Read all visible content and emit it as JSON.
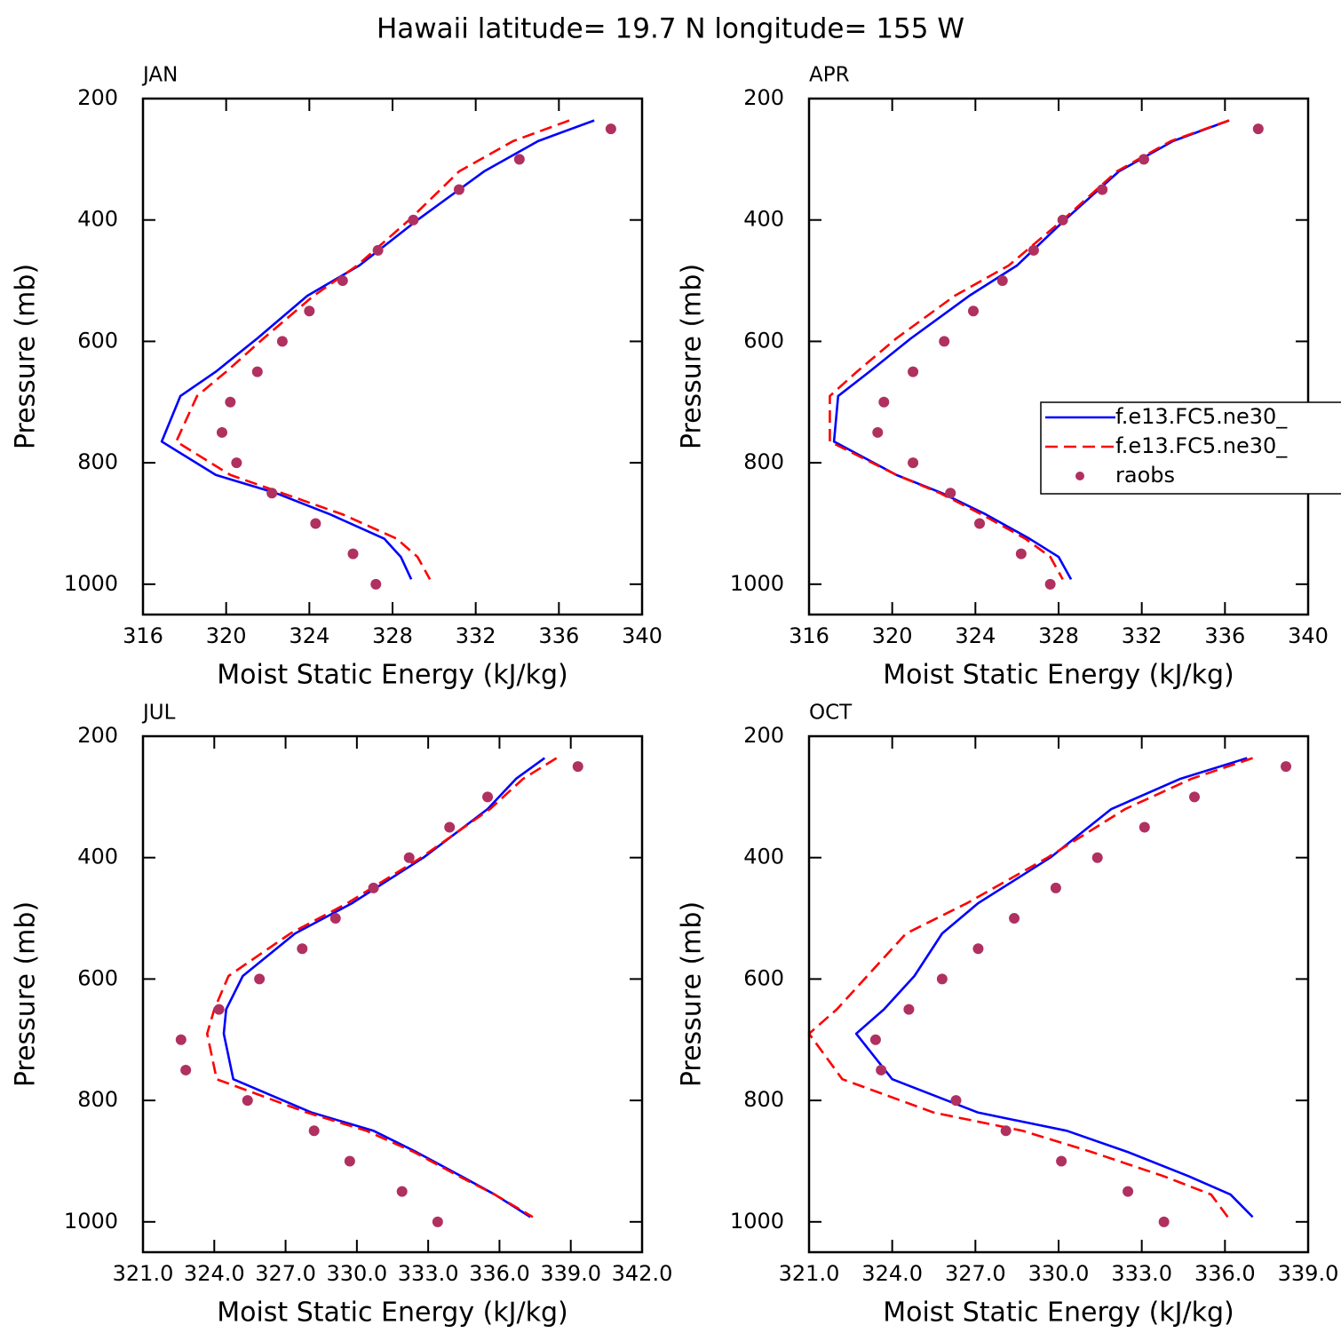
{
  "title": "Hawaii  latitude= 19.7 N longitude= 155 W",
  "chart_data": [
    {
      "type": "line",
      "title": "JAN",
      "x_label": "Moist Static Energy (kJ/kg)",
      "y_label": "Pressure (mb)",
      "xlim": [
        316,
        340
      ],
      "xticks": [
        316,
        320,
        324,
        328,
        332,
        336,
        340
      ],
      "ylim": [
        1050,
        200
      ],
      "yticks": [
        200,
        400,
        600,
        800,
        1000
      ],
      "series": [
        {
          "name": "f.e13.FC5.ne30_",
          "color": "#0000ff",
          "style": "solid",
          "x": [
            337.7,
            335.0,
            332.4,
            329.2,
            326.4,
            323.9,
            321.5,
            319.5,
            317.8,
            316.9,
            319.5,
            322.4,
            325.0,
            327.6,
            328.4,
            328.9
          ],
          "y": [
            236,
            270,
            320,
            400,
            475,
            525,
            595,
            650,
            690,
            765,
            820,
            850,
            885,
            925,
            955,
            992
          ]
        },
        {
          "name": "f.e13.FC5.ne30_",
          "color": "#ff0000",
          "style": "dashed",
          "x": [
            336.5,
            333.8,
            331.2,
            328.8,
            326.3,
            324.2,
            321.8,
            320.0,
            318.6,
            317.6,
            320.2,
            322.7,
            325.6,
            328.2,
            329.2,
            329.8
          ],
          "y": [
            236,
            270,
            320,
            400,
            475,
            525,
            595,
            650,
            690,
            765,
            820,
            850,
            885,
            925,
            955,
            992
          ]
        },
        {
          "name": "raobs",
          "color": "#b03060",
          "style": "markers",
          "x": [
            338.5,
            334.1,
            331.2,
            329.0,
            327.3,
            325.6,
            324.0,
            322.7,
            321.5,
            320.2,
            319.8,
            320.5,
            322.2,
            324.3,
            326.1,
            327.2
          ],
          "y": [
            250,
            300,
            350,
            400,
            450,
            500,
            550,
            600,
            650,
            700,
            750,
            800,
            850,
            900,
            950,
            1000
          ]
        }
      ]
    },
    {
      "type": "line",
      "title": "APR",
      "x_label": "Moist Static Energy (kJ/kg)",
      "y_label": "Pressure (mb)",
      "xlim": [
        316,
        340
      ],
      "xticks": [
        316,
        320,
        324,
        328,
        332,
        336,
        340
      ],
      "ylim": [
        1050,
        200
      ],
      "yticks": [
        200,
        400,
        600,
        800,
        1000
      ],
      "legend": "right",
      "series": [
        {
          "name": "f.e13.FC5.ne30_",
          "color": "#0000ff",
          "style": "solid",
          "x": [
            336.2,
            333.5,
            330.9,
            328.3,
            326.0,
            323.7,
            320.9,
            318.9,
            317.4,
            317.2,
            320.2,
            322.4,
            324.5,
            326.6,
            328.0,
            328.6
          ],
          "y": [
            236,
            270,
            320,
            400,
            475,
            525,
            595,
            650,
            690,
            765,
            820,
            850,
            885,
            925,
            955,
            992
          ]
        },
        {
          "name": "f.e13.FC5.ne30_",
          "color": "#ff0000",
          "style": "dashed",
          "x": [
            336.2,
            333.4,
            330.8,
            328.2,
            325.6,
            323.0,
            320.2,
            318.3,
            317.0,
            317.0,
            320.2,
            322.3,
            324.3,
            326.4,
            327.6,
            328.2
          ],
          "y": [
            236,
            270,
            320,
            400,
            475,
            525,
            595,
            650,
            690,
            765,
            820,
            850,
            885,
            925,
            955,
            992
          ]
        },
        {
          "name": "raobs",
          "color": "#b03060",
          "style": "markers",
          "x": [
            337.6,
            332.1,
            330.1,
            328.2,
            326.8,
            325.3,
            323.9,
            322.5,
            321.0,
            319.6,
            319.3,
            321.0,
            322.8,
            324.2,
            326.2,
            327.6
          ],
          "y": [
            250,
            300,
            350,
            400,
            450,
            500,
            550,
            600,
            650,
            700,
            750,
            800,
            850,
            900,
            950,
            1000
          ]
        }
      ]
    },
    {
      "type": "line",
      "title": "JUL",
      "x_label": "Moist Static Energy (kJ/kg)",
      "y_label": "Pressure (mb)",
      "xlim": [
        321,
        342
      ],
      "xticks": [
        {
          "value": 321,
          "label": "321.0"
        },
        {
          "value": 324,
          "label": "324.0"
        },
        {
          "value": 327,
          "label": "327.0"
        },
        {
          "value": 330,
          "label": "330.0"
        },
        {
          "value": 333,
          "label": "333.0"
        },
        {
          "value": 336,
          "label": "336.0"
        },
        {
          "value": 339,
          "label": "339.0"
        },
        {
          "value": 342,
          "label": "342.0"
        }
      ],
      "ylim": [
        1050,
        200
      ],
      "yticks": [
        200,
        400,
        600,
        800,
        1000
      ],
      "series": [
        {
          "name": "f.e13.FC5.ne30_",
          "color": "#0000ff",
          "style": "solid",
          "x": [
            337.9,
            336.7,
            335.5,
            332.8,
            329.8,
            327.4,
            325.2,
            324.5,
            324.4,
            324.8,
            328.1,
            330.7,
            332.5,
            334.4,
            335.8,
            337.3
          ],
          "y": [
            236,
            270,
            320,
            400,
            475,
            525,
            595,
            650,
            690,
            765,
            820,
            850,
            885,
            925,
            955,
            992
          ]
        },
        {
          "name": "f.e13.FC5.ne30_",
          "color": "#ff0000",
          "style": "dashed",
          "x": [
            338.4,
            337.0,
            335.6,
            332.7,
            329.6,
            327.2,
            324.6,
            324.0,
            323.7,
            324.1,
            327.9,
            330.4,
            332.4,
            334.3,
            335.8,
            337.4
          ],
          "y": [
            236,
            270,
            320,
            400,
            475,
            525,
            595,
            650,
            690,
            765,
            820,
            850,
            885,
            925,
            955,
            992
          ]
        },
        {
          "name": "raobs",
          "color": "#b03060",
          "style": "markers",
          "x": [
            339.3,
            335.5,
            333.9,
            332.2,
            330.7,
            329.1,
            327.7,
            325.9,
            324.2,
            322.6,
            322.8,
            325.4,
            328.2,
            329.7,
            331.9,
            333.4
          ],
          "y": [
            250,
            300,
            350,
            400,
            450,
            500,
            550,
            600,
            650,
            700,
            750,
            800,
            850,
            900,
            950,
            1000
          ]
        }
      ]
    },
    {
      "type": "line",
      "title": "OCT",
      "x_label": "Moist Static Energy (kJ/kg)",
      "y_label": "Pressure (mb)",
      "xlim": [
        321,
        339
      ],
      "xticks": [
        {
          "value": 321,
          "label": "321.0"
        },
        {
          "value": 324,
          "label": "324.0"
        },
        {
          "value": 327,
          "label": "327.0"
        },
        {
          "value": 330,
          "label": "330.0"
        },
        {
          "value": 333,
          "label": "333.0"
        },
        {
          "value": 336,
          "label": "336.0"
        },
        {
          "value": 339,
          "label": "339.0"
        }
      ],
      "ylim": [
        1050,
        200
      ],
      "yticks": [
        200,
        400,
        600,
        800,
        1000
      ],
      "series": [
        {
          "name": "f.e13.FC5.ne30_",
          "color": "#0000ff",
          "style": "solid",
          "x": [
            336.8,
            334.4,
            331.9,
            329.7,
            327.1,
            325.8,
            324.8,
            323.7,
            322.7,
            324.0,
            327.1,
            330.3,
            332.5,
            334.7,
            336.2,
            337.0
          ],
          "y": [
            236,
            270,
            320,
            400,
            475,
            525,
            595,
            650,
            690,
            765,
            820,
            850,
            885,
            925,
            955,
            992
          ]
        },
        {
          "name": "f.e13.FC5.ne30_",
          "color": "#ff0000",
          "style": "dashed",
          "x": [
            337.0,
            334.8,
            332.4,
            329.6,
            326.7,
            324.5,
            323.1,
            322.0,
            321.0,
            322.2,
            325.5,
            328.7,
            331.2,
            333.8,
            335.5,
            336.1
          ],
          "y": [
            236,
            270,
            320,
            400,
            475,
            525,
            595,
            650,
            690,
            765,
            820,
            850,
            885,
            925,
            955,
            992
          ]
        },
        {
          "name": "raobs",
          "color": "#b03060",
          "style": "markers",
          "x": [
            338.2,
            334.9,
            333.1,
            331.4,
            329.9,
            328.4,
            327.1,
            325.8,
            324.6,
            323.4,
            323.6,
            326.3,
            328.1,
            330.1,
            332.5,
            333.8
          ],
          "y": [
            250,
            300,
            350,
            400,
            450,
            500,
            550,
            600,
            650,
            700,
            750,
            800,
            850,
            900,
            950,
            1000
          ]
        }
      ]
    }
  ]
}
